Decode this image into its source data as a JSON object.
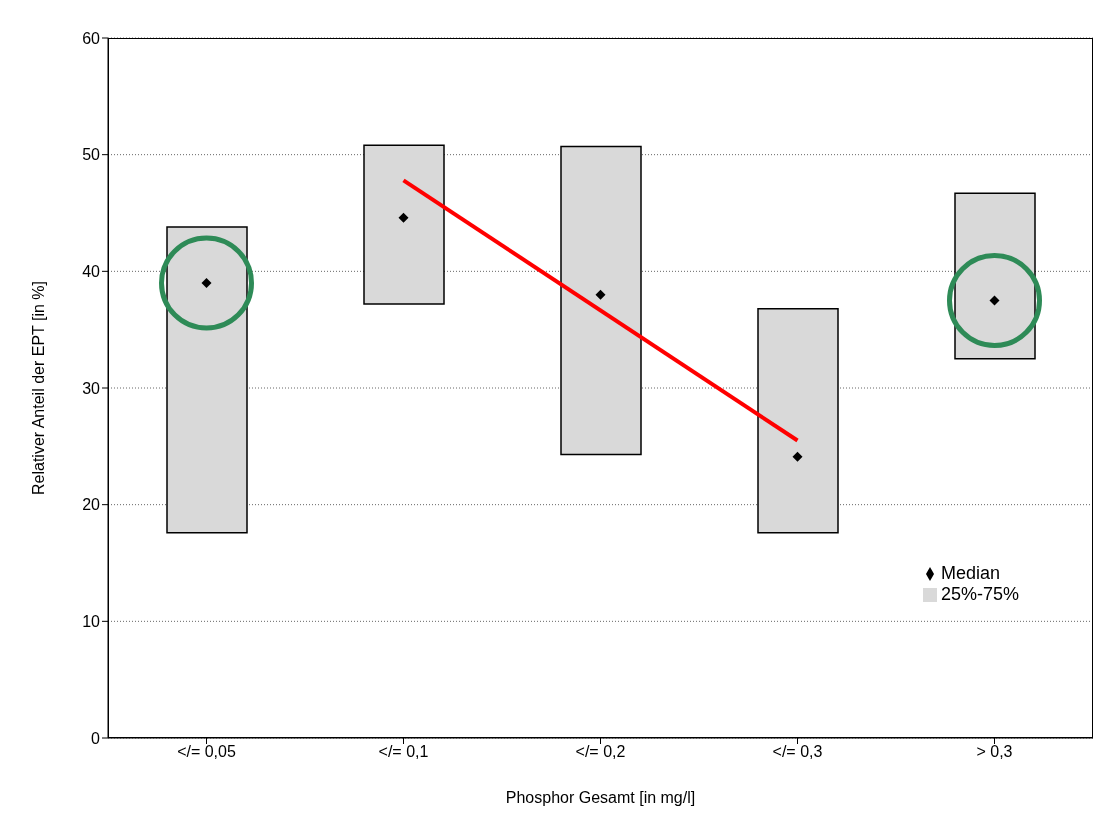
{
  "chart_data": {
    "type": "bar",
    "xlabel": "Phosphor Gesamt [in mg/l]",
    "ylabel": "Relativer Anteil der EPT [in %]",
    "categories": [
      "</= 0,05",
      "</= 0,1",
      "</= 0,2",
      "</= 0,3",
      "> 0,3"
    ],
    "series": [
      {
        "name": "25%-75%",
        "color": "#d9d9d9",
        "base": [
          17.6,
          37.2,
          24.3,
          17.6,
          32.5
        ],
        "values": [
          26.2,
          13.6,
          26.4,
          19.2,
          14.2
        ]
      },
      {
        "type": "scatter",
        "name": "Median",
        "color": "#000000",
        "marker": "diamond",
        "x": [
          "</= 0,05",
          "</= 0,1",
          "</= 0,2",
          "</= 0,3",
          "> 0,3"
        ],
        "values": [
          39.0,
          44.6,
          38.0,
          24.1,
          37.5
        ]
      },
      {
        "type": "line",
        "color": "#ff0000",
        "marker": "none",
        "x": [
          "</= 0,1",
          "</= 0,3"
        ],
        "values": [
          47.8,
          25.5
        ]
      }
    ],
    "ylim": [
      0,
      60
    ],
    "yticks": [
      0,
      10,
      20,
      30,
      40,
      50,
      60
    ],
    "grid": "y",
    "legend": "right"
  }
}
